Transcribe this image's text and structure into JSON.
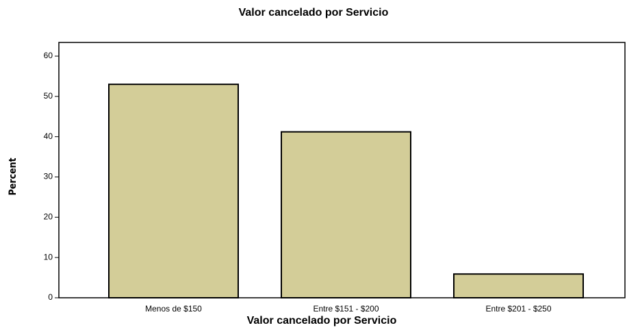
{
  "chart_data": {
    "type": "bar",
    "title": "Valor cancelado por Servicio",
    "xlabel": "Valor cancelado por Servicio",
    "ylabel": "Percent",
    "categories": [
      "Menos de $150",
      "Entre $151 - $200",
      "Entre $201 - $250"
    ],
    "values": [
      53,
      41.2,
      5.9
    ],
    "color": "#d3cd98",
    "ylim": [
      0,
      63.4
    ],
    "yticks": [
      0,
      10,
      20,
      30,
      40,
      50,
      60
    ],
    "grid": false
  }
}
